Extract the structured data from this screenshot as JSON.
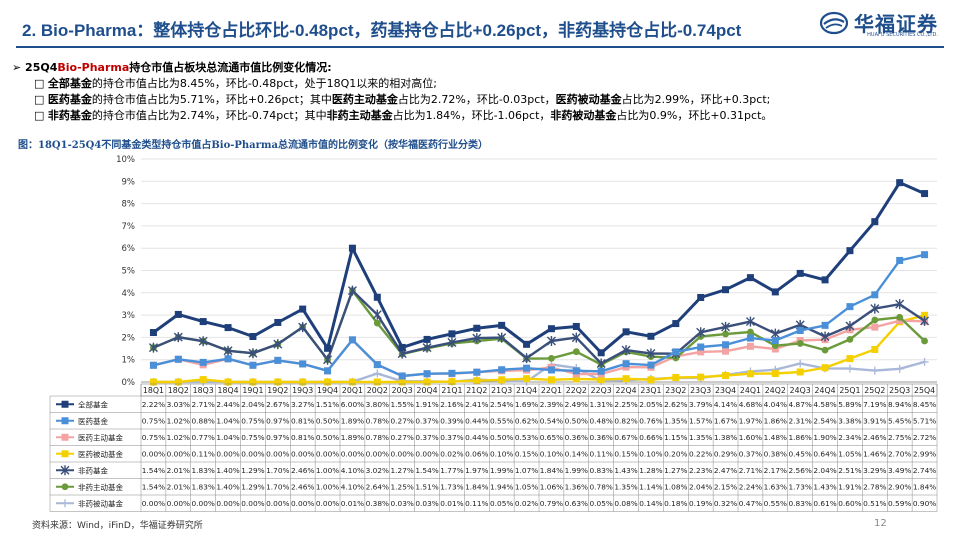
{
  "header": {
    "title": "2. Bio-Pharma：整体持仓占比环比-0.48pct，药基持仓占比+0.26pct，非药基持仓占比-0.74pct",
    "logo_text": "华福证券",
    "logo_sub": "HUAFU SECURITIES CO.,LTD."
  },
  "bullets": {
    "l1_pre": "25Q4",
    "l1_red": "Bio-Pharma",
    "l1_post": "持仓市值占板块总流通市值比例变化情况:",
    "l2a_b": "全部基金",
    "l2a_t": "的持仓市值占比为8.45%，环比-0.48pct，处于18Q1以来的相对高位;",
    "l2b_b": "医药基金",
    "l2b_t1": "的持仓市值占比为5.71%，环比+0.26pct；其中",
    "l2b_b2": "医药主动基金",
    "l2b_t2": "占比为2.72%，环比-0.03pct，",
    "l2b_b3": "医药被动基金",
    "l2b_t3": "占比为2.99%，环比+0.3pct;",
    "l2c_b": "非药基金",
    "l2c_t1": "的持仓市值占比为2.74%，环比-0.74pct；其中",
    "l2c_b2": "非药主动基金",
    "l2c_t2": "占比为1.84%，环比-1.06pct，",
    "l2c_b3": "非药被动基金",
    "l2c_t3": "占比为0.9%，环比+0.31pct。"
  },
  "caption": "图：18Q1-25Q4不同基金类型持仓市值占Bio-Pharma总流通市值的比例变化（按华福医药行业分类）",
  "source": "资料来源：Wind，iFinD，华福证券研究所",
  "page_number": "12",
  "chart_data": {
    "type": "line",
    "ylim": [
      0,
      10
    ],
    "y_ticks": [
      "0%",
      "1%",
      "2%",
      "3%",
      "4%",
      "5%",
      "6%",
      "7%",
      "8%",
      "9%",
      "10%"
    ],
    "categories": [
      "18Q1",
      "18Q2",
      "18Q3",
      "18Q4",
      "19Q1",
      "19Q2",
      "19Q3",
      "19Q4",
      "20Q1",
      "20Q2",
      "20Q3",
      "20Q4",
      "21Q1",
      "21Q2",
      "21Q3",
      "21Q4",
      "22Q1",
      "22Q2",
      "22Q3",
      "22Q4",
      "23Q1",
      "23Q2",
      "23Q3",
      "23Q4",
      "24Q1",
      "24Q2",
      "24Q3",
      "24Q4",
      "25Q1",
      "25Q2",
      "25Q3",
      "25Q4"
    ],
    "series": [
      {
        "name": "全部基金",
        "color": "#1f3f7a",
        "marker": "square",
        "values": [
          2.22,
          3.03,
          2.71,
          2.44,
          2.04,
          2.67,
          3.27,
          1.51,
          6.0,
          3.8,
          1.55,
          1.91,
          2.16,
          2.41,
          2.54,
          1.69,
          2.39,
          2.49,
          1.31,
          2.25,
          2.05,
          2.62,
          3.79,
          4.14,
          4.68,
          4.04,
          4.87,
          4.58,
          5.89,
          7.19,
          8.94,
          8.45
        ],
        "labels": [
          "2.22%",
          "3.03%",
          "2.71%",
          "2.44%",
          "2.04%",
          "2.67%",
          "3.27%",
          "1.51%",
          "6.00%",
          "3.80%",
          "1.55%",
          "1.91%",
          "2.16%",
          "2.41%",
          "2.54%",
          "1.69%",
          "2.39%",
          "2.49%",
          "1.31%",
          "2.25%",
          "2.05%",
          "2.62%",
          "3.79%",
          "4.14%",
          "4.68%",
          "4.04%",
          "4.87%",
          "4.58%",
          "5.89%",
          "7.19%",
          "8.94%",
          "8.45%"
        ]
      },
      {
        "name": "医药基金",
        "color": "#4a90d9",
        "marker": "square",
        "values": [
          0.75,
          1.02,
          0.88,
          1.04,
          0.75,
          0.97,
          0.81,
          0.5,
          1.89,
          0.78,
          0.27,
          0.37,
          0.39,
          0.44,
          0.55,
          0.62,
          0.54,
          0.5,
          0.48,
          0.82,
          0.76,
          1.35,
          1.57,
          1.67,
          1.97,
          1.86,
          2.31,
          2.54,
          3.38,
          3.91,
          5.45,
          5.71
        ],
        "labels": [
          "0.75%",
          "1.02%",
          "0.88%",
          "1.04%",
          "0.75%",
          "0.97%",
          "0.81%",
          "0.50%",
          "1.89%",
          "0.78%",
          "0.27%",
          "0.37%",
          "0.39%",
          "0.44%",
          "0.55%",
          "0.62%",
          "0.54%",
          "0.50%",
          "0.48%",
          "0.82%",
          "0.76%",
          "1.35%",
          "1.57%",
          "1.67%",
          "1.97%",
          "1.86%",
          "2.31%",
          "2.54%",
          "3.38%",
          "3.91%",
          "5.45%",
          "5.71%"
        ]
      },
      {
        "name": "医药主动基金",
        "color": "#f4a3a3",
        "marker": "square",
        "values": [
          0.75,
          1.02,
          0.77,
          1.04,
          0.75,
          0.97,
          0.81,
          0.5,
          1.89,
          0.78,
          0.27,
          0.37,
          0.37,
          0.44,
          0.5,
          0.53,
          0.65,
          0.36,
          0.36,
          0.67,
          0.66,
          1.15,
          1.35,
          1.38,
          1.6,
          1.48,
          1.86,
          1.9,
          2.34,
          2.46,
          2.75,
          2.72
        ],
        "labels": [
          "0.75%",
          "1.02%",
          "0.77%",
          "1.04%",
          "0.75%",
          "0.97%",
          "0.81%",
          "0.50%",
          "1.89%",
          "0.78%",
          "0.27%",
          "0.37%",
          "0.37%",
          "0.44%",
          "0.50%",
          "0.53%",
          "0.65%",
          "0.36%",
          "0.36%",
          "0.67%",
          "0.66%",
          "1.15%",
          "1.35%",
          "1.38%",
          "1.60%",
          "1.48%",
          "1.86%",
          "1.90%",
          "2.34%",
          "2.46%",
          "2.75%",
          "2.72%"
        ]
      },
      {
        "name": "医药被动基金",
        "color": "#f5d000",
        "marker": "square",
        "values": [
          0.0,
          0.0,
          0.11,
          0.0,
          0.0,
          0.0,
          0.0,
          0.0,
          0.0,
          0.0,
          0.0,
          0.0,
          0.02,
          0.06,
          0.1,
          0.15,
          0.1,
          0.14,
          0.11,
          0.15,
          0.1,
          0.2,
          0.22,
          0.29,
          0.37,
          0.38,
          0.45,
          0.64,
          1.05,
          1.46,
          2.7,
          2.99
        ],
        "labels": [
          "0.00%",
          "0.00%",
          "0.11%",
          "0.00%",
          "0.00%",
          "0.00%",
          "0.00%",
          "0.00%",
          "0.00%",
          "0.00%",
          "0.00%",
          "0.00%",
          "0.02%",
          "0.06%",
          "0.10%",
          "0.15%",
          "0.10%",
          "0.14%",
          "0.11%",
          "0.15%",
          "0.10%",
          "0.20%",
          "0.22%",
          "0.29%",
          "0.37%",
          "0.38%",
          "0.45%",
          "0.64%",
          "1.05%",
          "1.46%",
          "2.70%",
          "2.99%"
        ]
      },
      {
        "name": "非药基金",
        "color": "#3a4f7a",
        "marker": "star",
        "values": [
          1.54,
          2.01,
          1.83,
          1.4,
          1.29,
          1.7,
          2.46,
          1.0,
          4.1,
          3.02,
          1.27,
          1.54,
          1.77,
          1.97,
          1.99,
          1.07,
          1.84,
          1.99,
          0.83,
          1.43,
          1.28,
          1.27,
          2.23,
          2.47,
          2.71,
          2.17,
          2.56,
          2.04,
          2.51,
          3.29,
          3.49,
          2.74
        ],
        "labels": [
          "1.54%",
          "2.01%",
          "1.83%",
          "1.40%",
          "1.29%",
          "1.70%",
          "2.46%",
          "1.00%",
          "4.10%",
          "3.02%",
          "1.27%",
          "1.54%",
          "1.77%",
          "1.97%",
          "1.99%",
          "1.07%",
          "1.84%",
          "1.99%",
          "0.83%",
          "1.43%",
          "1.28%",
          "1.27%",
          "2.23%",
          "2.47%",
          "2.71%",
          "2.17%",
          "2.56%",
          "2.04%",
          "2.51%",
          "3.29%",
          "3.49%",
          "2.74%"
        ]
      },
      {
        "name": "非药主动基金",
        "color": "#6a9a3a",
        "marker": "circle",
        "values": [
          1.54,
          2.01,
          1.83,
          1.4,
          1.29,
          1.7,
          2.46,
          1.0,
          4.1,
          2.64,
          1.25,
          1.51,
          1.73,
          1.84,
          1.94,
          1.05,
          1.06,
          1.36,
          0.78,
          1.35,
          1.14,
          1.08,
          2.04,
          2.15,
          2.24,
          1.63,
          1.73,
          1.43,
          1.91,
          2.78,
          2.9,
          1.84
        ],
        "labels": [
          "1.54%",
          "2.01%",
          "1.83%",
          "1.40%",
          "1.29%",
          "1.70%",
          "2.46%",
          "1.00%",
          "4.10%",
          "2.64%",
          "1.25%",
          "1.51%",
          "1.73%",
          "1.84%",
          "1.94%",
          "1.05%",
          "1.06%",
          "1.36%",
          "0.78%",
          "1.35%",
          "1.14%",
          "1.08%",
          "2.04%",
          "2.15%",
          "2.24%",
          "1.63%",
          "1.73%",
          "1.43%",
          "1.91%",
          "2.78%",
          "2.90%",
          "1.84%"
        ]
      },
      {
        "name": "非药被动基金",
        "color": "#a9b8d8",
        "marker": "plus",
        "values": [
          0.0,
          0.0,
          0.0,
          0.0,
          0.0,
          0.0,
          0.0,
          0.0,
          0.01,
          0.38,
          0.03,
          0.03,
          0.01,
          0.11,
          0.05,
          0.02,
          0.79,
          0.63,
          0.05,
          0.08,
          0.14,
          0.18,
          0.19,
          0.32,
          0.47,
          0.55,
          0.83,
          0.61,
          0.6,
          0.51,
          0.59,
          0.9
        ],
        "labels": [
          "0.00%",
          "0.00%",
          "0.00%",
          "0.00%",
          "0.00%",
          "0.00%",
          "0.00%",
          "0.00%",
          "0.01%",
          "0.38%",
          "0.03%",
          "0.03%",
          "0.01%",
          "0.11%",
          "0.05%",
          "0.02%",
          "0.79%",
          "0.63%",
          "0.05%",
          "0.08%",
          "0.14%",
          "0.18%",
          "0.19%",
          "0.32%",
          "0.47%",
          "0.55%",
          "0.83%",
          "0.61%",
          "0.60%",
          "0.51%",
          "0.59%",
          "0.90%"
        ]
      }
    ]
  }
}
